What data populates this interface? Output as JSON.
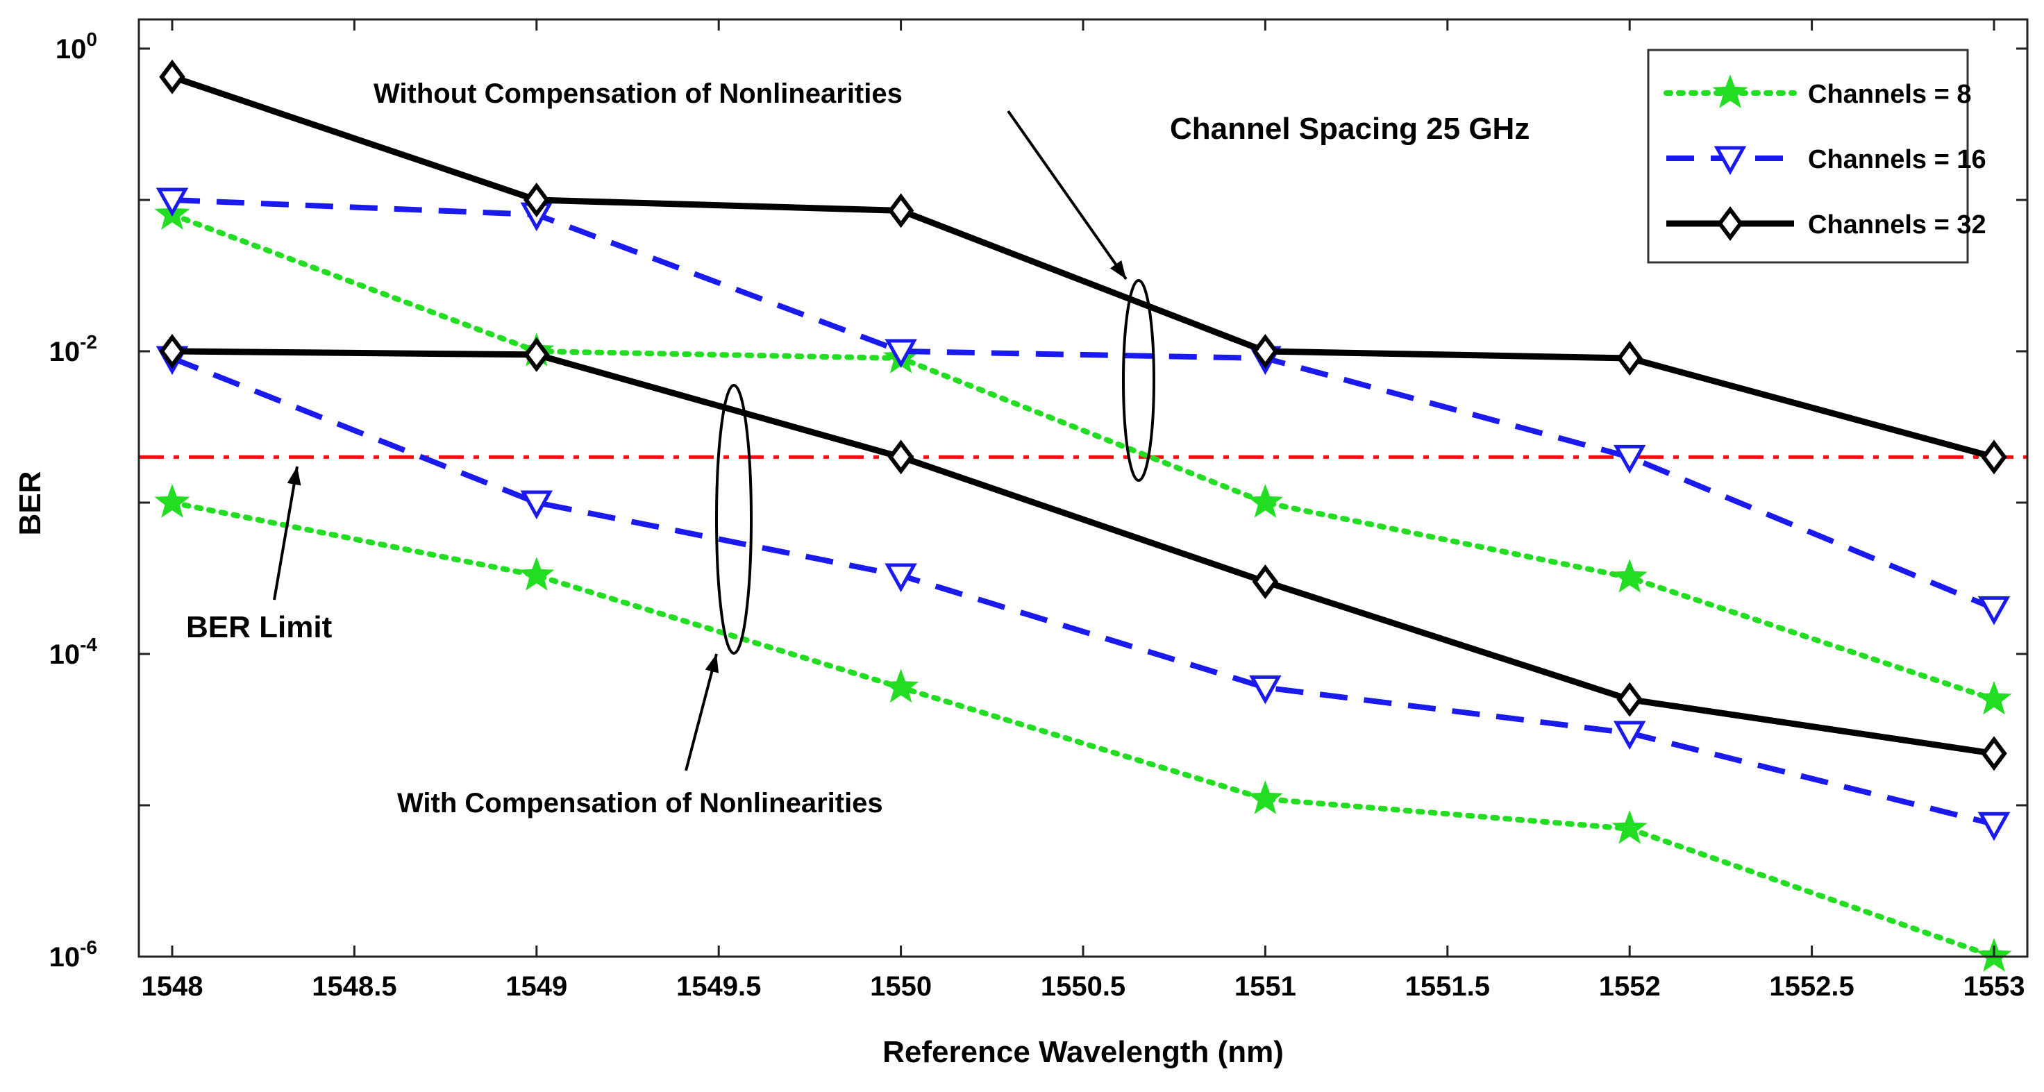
{
  "chart_data": {
    "type": "line",
    "title": "",
    "xlabel": "Reference Wavelength (nm)",
    "ylabel": "BER",
    "xlim": [
      1548,
      1553
    ],
    "ylim": [
      1e-06,
      1.5
    ],
    "yscale": "log",
    "xticks": [
      "1548",
      "1548.5",
      "1549",
      "1549.5",
      "1550",
      "1550.5",
      "1551",
      "1551.5",
      "1552",
      "1552.5",
      "1553"
    ],
    "yticks": [
      {
        "value": 1e-06,
        "base": "10",
        "exp": "-6"
      },
      {
        "value": 0.0001,
        "base": "10",
        "exp": "-4"
      },
      {
        "value": 0.01,
        "base": "10",
        "exp": "-2"
      },
      {
        "value": 1,
        "base": "10",
        "exp": "0"
      }
    ],
    "x": [
      1548,
      1549,
      1550,
      1551,
      1552,
      1553
    ],
    "series": [
      {
        "name": "Channels = 8",
        "key": "ch8",
        "group": "without",
        "color": "#22dd22",
        "style": "dotted",
        "marker": "star",
        "values": [
          0.08,
          0.01,
          0.009,
          0.001,
          0.00032,
          5e-05
        ]
      },
      {
        "name": "Channels = 16",
        "key": "ch16",
        "group": "without",
        "color": "#1a1aee",
        "style": "dashed",
        "marker": "triangle-down",
        "values": [
          0.1,
          0.08,
          0.01,
          0.009,
          0.002,
          0.0002
        ]
      },
      {
        "name": "Channels = 32",
        "key": "ch32",
        "group": "without",
        "color": "#000000",
        "style": "solid",
        "marker": "diamond",
        "values": [
          0.65,
          0.1,
          0.085,
          0.01,
          0.009,
          0.002
        ]
      },
      {
        "name": "Channels = 8",
        "key": "ch8",
        "group": "with",
        "color": "#22dd22",
        "style": "dotted",
        "marker": "star",
        "values": [
          0.001,
          0.00033,
          6e-05,
          1.1e-05,
          7e-06,
          1e-06
        ]
      },
      {
        "name": "Channels = 16",
        "key": "ch16",
        "group": "with",
        "color": "#1a1aee",
        "style": "dashed",
        "marker": "triangle-down",
        "values": [
          0.009,
          0.001,
          0.00033,
          6e-05,
          3e-05,
          7.5e-06
        ]
      },
      {
        "name": "Channels = 32",
        "key": "ch32",
        "group": "with",
        "color": "#000000",
        "style": "solid",
        "marker": "diamond",
        "values": [
          0.01,
          0.0095,
          0.002,
          0.0003,
          5e-05,
          2.2e-05
        ]
      }
    ],
    "reference_line": {
      "name": "BER Limit",
      "value": 0.002,
      "color": "#ee1111",
      "style": "dash-dot"
    },
    "legend": {
      "position": "top-right",
      "entries": [
        {
          "label": "Channels = 8",
          "key": "ch8"
        },
        {
          "label": "Channels = 16",
          "key": "ch16"
        },
        {
          "label": "Channels = 32",
          "key": "ch32"
        }
      ]
    },
    "annotations": {
      "spacing": "Channel Spacing 25 GHz",
      "without": "Without Compensation of Nonlinearities",
      "with": "With Compensation of Nonlinearities",
      "ber_limit": "BER Limit"
    },
    "grid": false
  }
}
